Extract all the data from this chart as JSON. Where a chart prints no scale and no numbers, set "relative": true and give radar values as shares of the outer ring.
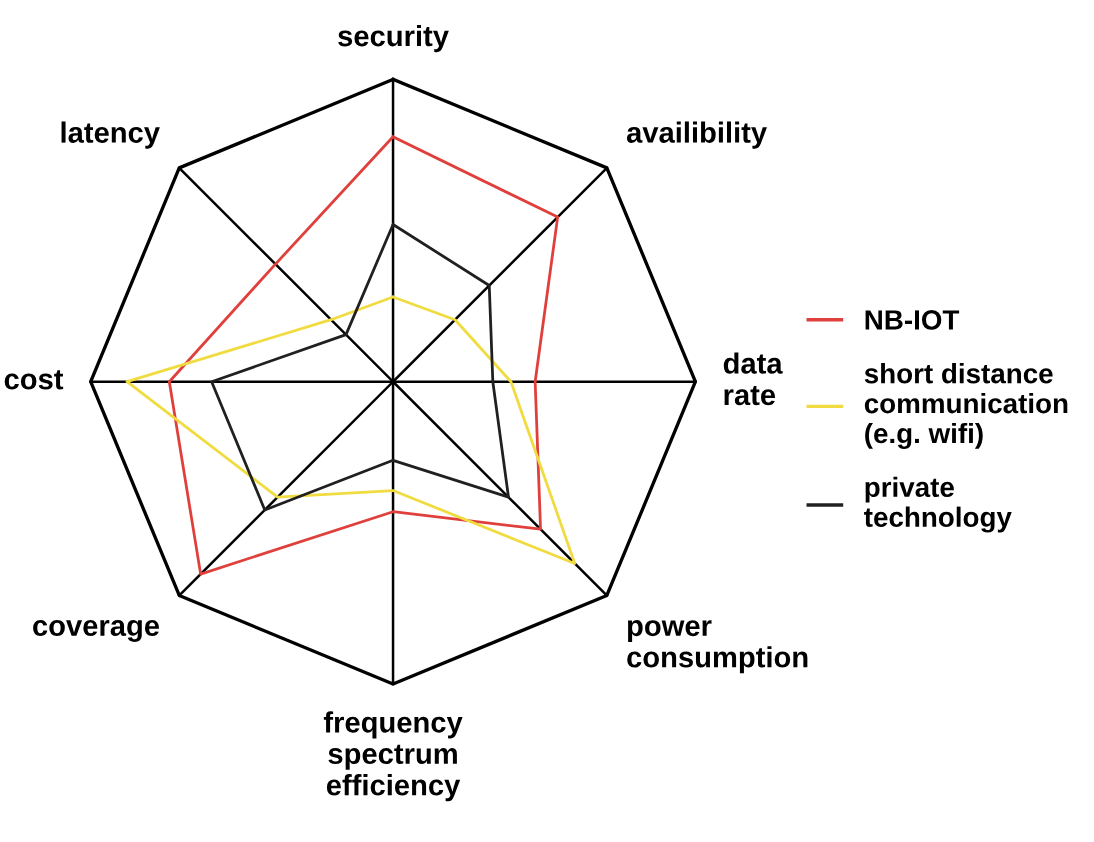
{
  "chart_data": {
    "type": "radar",
    "relative": true,
    "legend": "right",
    "categories": [
      "security",
      "availibility",
      "data\nrate",
      "power\nconsumption",
      "frequency\nspectrum\nefficiency",
      "coverage",
      "cost",
      "latency"
    ],
    "series": [
      {
        "name": "NB-IOT",
        "color": "#e0403c",
        "values": [
          0.81,
          0.77,
          0.47,
          0.69,
          0.43,
          0.9,
          0.74,
          0.55
        ]
      },
      {
        "name": "short distance\ncommunication\n(e.g. wifi)",
        "color": "#f0dc40",
        "values": [
          0.28,
          0.29,
          0.39,
          0.85,
          0.36,
          0.54,
          0.88,
          0.29
        ]
      },
      {
        "name": "private\ntechnology",
        "color": "#202020",
        "values": [
          0.52,
          0.45,
          0.33,
          0.54,
          0.26,
          0.6,
          0.6,
          0.22
        ]
      }
    ]
  }
}
